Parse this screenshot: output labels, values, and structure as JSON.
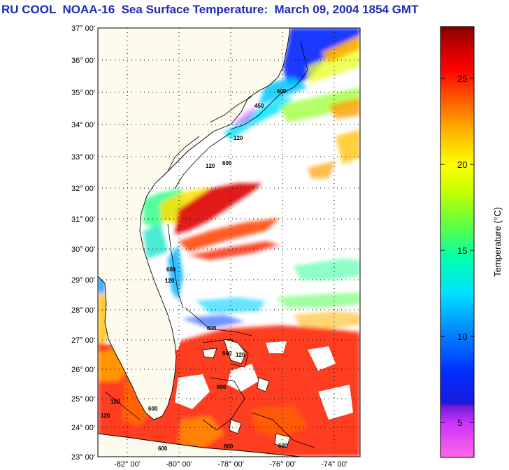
{
  "title": "RU COOL  NOAA-16  Sea Surface Temperature:  March 09, 2004 1854 GMT",
  "map": {
    "lat_labels": [
      "37° 00'",
      "36° 00'",
      "35° 00'",
      "34° 00'",
      "33° 00'",
      "32° 00'",
      "31° 00'",
      "30° 00'",
      "29° 00'",
      "28° 00'",
      "27° 00'",
      "26° 00'",
      "25° 00'",
      "24° 00'",
      "23° 00'"
    ],
    "lon_labels": [
      "-82° 00'",
      "-80° 00'",
      "-78° 00'",
      "-76° 00'",
      "-74° 00'"
    ],
    "contour_labels": [
      "600",
      "450",
      "120",
      "120",
      "600",
      "600",
      "120",
      "600",
      "120",
      "600",
      "600",
      "600",
      "120",
      "600",
      "120",
      "600",
      "600"
    ]
  },
  "colorbar": {
    "title": "Temperature (°C)",
    "ticks": [
      "25",
      "20",
      "15",
      "10",
      "5"
    ],
    "min": 3,
    "max": 28
  },
  "colors": {
    "title": "#1d2ab8",
    "land": "#fdfbee"
  }
}
